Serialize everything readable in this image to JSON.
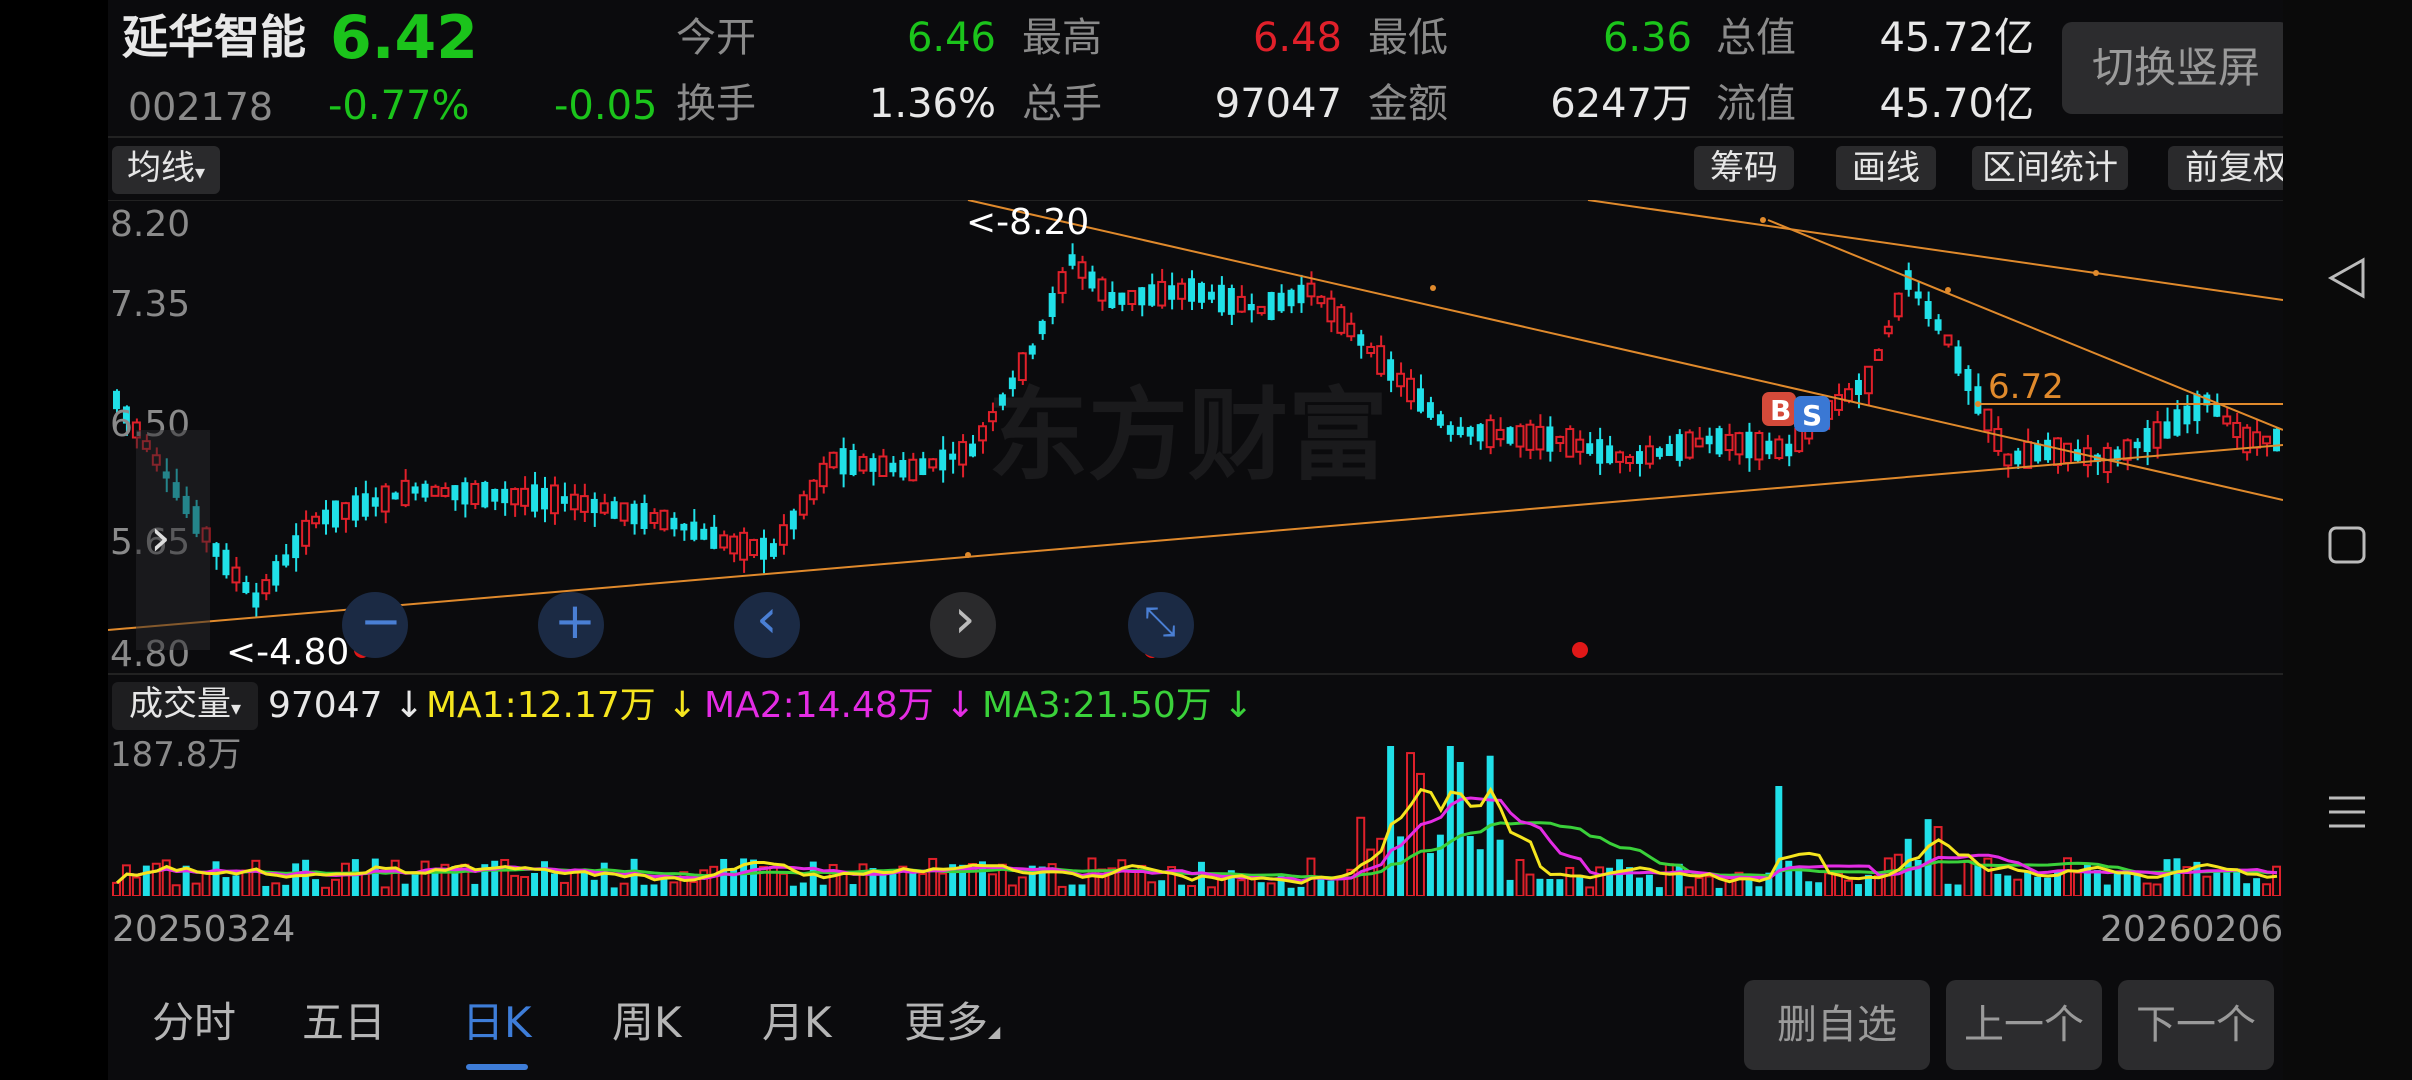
{
  "stock": {
    "name": "延华智能",
    "price": "6.42",
    "code": "002178",
    "change_pct": "-0.77%",
    "change": "-0.05"
  },
  "quote": {
    "open_label": "今开",
    "open": "6.46",
    "high_label": "最高",
    "high": "6.48",
    "low_label": "最低",
    "low": "6.36",
    "total_mv_label": "总值",
    "total_mv": "45.72亿",
    "turnover_label": "换手",
    "turnover": "1.36%",
    "volume_label": "总手",
    "volume": "97047",
    "amount_label": "金额",
    "amount": "6247万",
    "float_mv_label": "流值",
    "float_mv": "45.70亿"
  },
  "switch_button": "切换竖屏",
  "toolbar": {
    "ma_label": "均线",
    "chips_label": "筹码",
    "draw_label": "画线",
    "range_label": "区间统计",
    "adjust_label": "前复权"
  },
  "kline": {
    "y_ticks": [
      "8.20",
      "7.35",
      "6.50",
      "5.65",
      "4.80"
    ],
    "max_marker": "<-8.20",
    "min_marker": "<-4.80",
    "line_label": "6.72",
    "watermark": "东方财富",
    "buy_badge": "B",
    "sell_badge": "S"
  },
  "volume_bar": {
    "label": "成交量",
    "current": "97047",
    "ma1": "MA1:12.17万",
    "ma2": "MA2:14.48万",
    "ma3": "MA3:21.50万",
    "max_tick": "187.8万",
    "start_date": "20250324",
    "end_date": "20260206"
  },
  "tabs": [
    "分时",
    "五日",
    "日K",
    "周K",
    "月K",
    "更多"
  ],
  "active_tab": "日K",
  "actions": {
    "remove_watch": "删自选",
    "prev": "上一个",
    "next": "下一个"
  },
  "colors": {
    "up": "#e0202a",
    "down": "#20e0e8",
    "price_green": "#1bc41b",
    "trendline": "#e08a2c",
    "ma1": "#f5e51e",
    "ma2": "#e42ce4",
    "ma3": "#3ad13a",
    "active_tab": "#3e7dd8"
  }
}
